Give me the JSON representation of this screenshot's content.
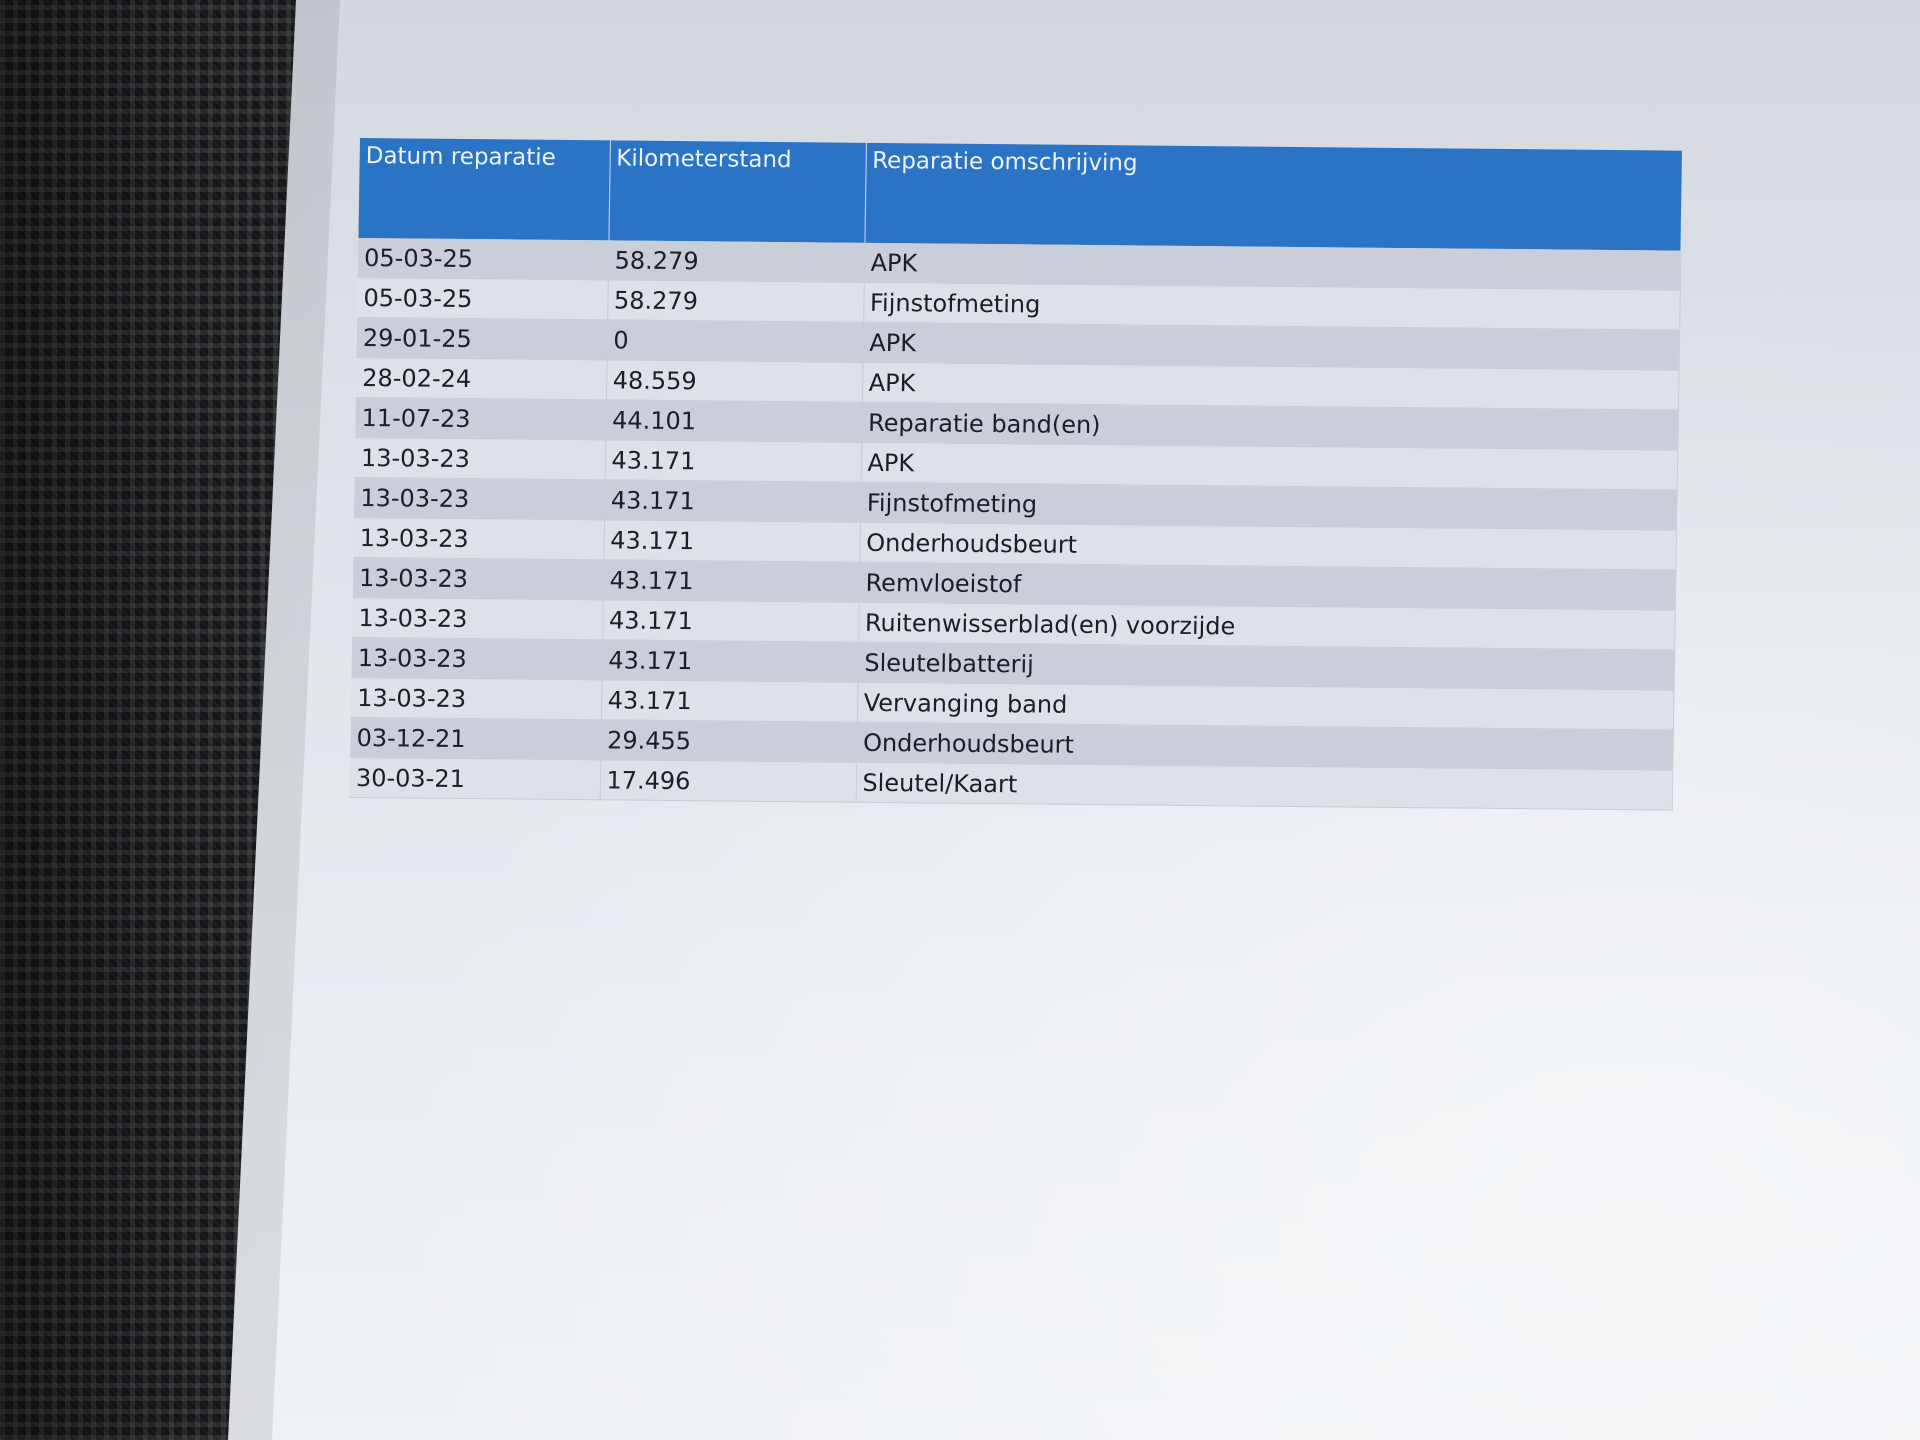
{
  "repair_table": {
    "headers": [
      "Datum reparatie",
      "Kilometerstand",
      "Reparatie omschrijving"
    ],
    "rows": [
      [
        "05-03-25",
        "58.279",
        "APK"
      ],
      [
        "05-03-25",
        "58.279",
        "Fijnstofmeting"
      ],
      [
        "29-01-25",
        "0",
        "APK"
      ],
      [
        "28-02-24",
        "48.559",
        "APK"
      ],
      [
        "11-07-23",
        "44.101",
        "Reparatie band(en)"
      ],
      [
        "13-03-23",
        "43.171",
        "APK"
      ],
      [
        "13-03-23",
        "43.171",
        "Fijnstofmeting"
      ],
      [
        "13-03-23",
        "43.171",
        "Onderhoudsbeurt"
      ],
      [
        "13-03-23",
        "43.171",
        "Remvloeistof"
      ],
      [
        "13-03-23",
        "43.171",
        "Ruitenwisserblad(en) voorzijde"
      ],
      [
        "13-03-23",
        "43.171",
        "Sleutelbatterij"
      ],
      [
        "13-03-23",
        "43.171",
        "Vervanging band"
      ],
      [
        "03-12-21",
        "29.455",
        "Onderhoudsbeurt"
      ],
      [
        "30-03-21",
        "17.496",
        "Sleutel/Kaart"
      ]
    ]
  },
  "colors": {
    "header_bg": "#2b73c4",
    "row_dark": "#c9ced8",
    "row_light": "#dde1e8"
  }
}
